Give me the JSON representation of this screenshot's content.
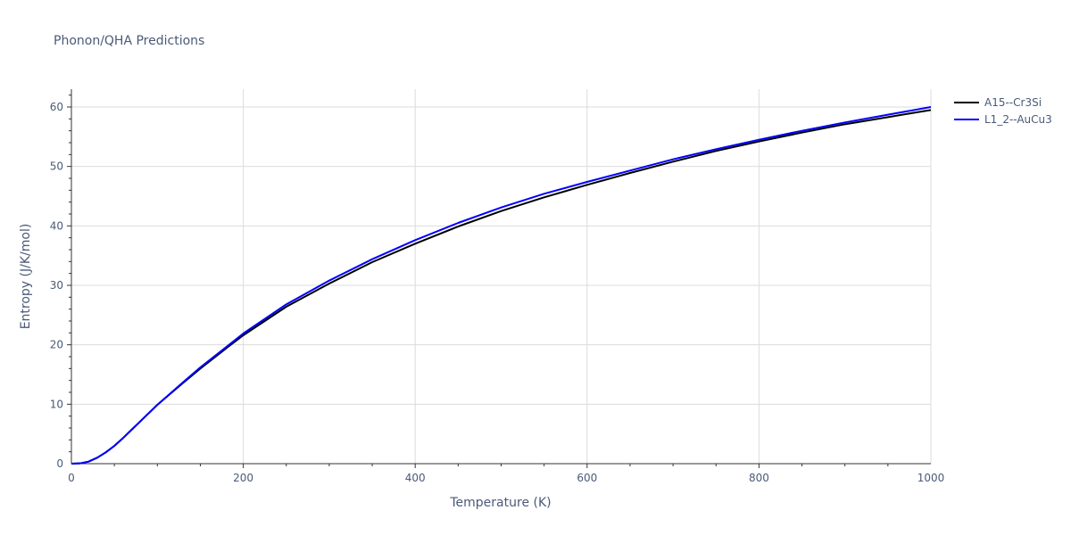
{
  "chart_data": {
    "type": "line",
    "title": "Phonon/QHA Predictions",
    "xlabel": "Temperature (K)",
    "ylabel": "Entropy (J/K/mol)",
    "xlim": [
      0,
      1000
    ],
    "ylim": [
      0,
      63
    ],
    "xticks": [
      0,
      200,
      400,
      600,
      800,
      1000
    ],
    "yticks": [
      0,
      10,
      20,
      30,
      40,
      50,
      60
    ],
    "grid": true,
    "legend_position": "top-right",
    "series": [
      {
        "name": "A15--Cr3Si",
        "color": "#000000",
        "x": [
          0,
          10,
          20,
          30,
          40,
          50,
          60,
          70,
          80,
          100,
          130,
          150,
          180,
          200,
          250,
          300,
          350,
          400,
          450,
          500,
          550,
          600,
          650,
          700,
          750,
          800,
          850,
          900,
          950,
          1000
        ],
        "y": [
          0,
          0.05,
          0.35,
          1.0,
          1.9,
          3.0,
          4.3,
          5.7,
          7.1,
          9.9,
          13.6,
          16.0,
          19.4,
          21.6,
          26.4,
          30.3,
          33.9,
          37.0,
          39.9,
          42.5,
          44.8,
          46.9,
          48.9,
          50.8,
          52.6,
          54.2,
          55.7,
          57.1,
          58.3,
          59.5
        ]
      },
      {
        "name": "L1_2--AuCu3",
        "color": "#0000ff",
        "x": [
          0,
          10,
          20,
          30,
          40,
          50,
          60,
          70,
          80,
          100,
          130,
          150,
          180,
          200,
          250,
          300,
          350,
          400,
          450,
          500,
          550,
          600,
          650,
          700,
          750,
          800,
          850,
          900,
          950,
          1000
        ],
        "y": [
          0,
          0.05,
          0.35,
          1.0,
          1.9,
          3.0,
          4.3,
          5.7,
          7.1,
          9.9,
          13.7,
          16.2,
          19.6,
          21.9,
          26.8,
          30.8,
          34.4,
          37.6,
          40.5,
          43.1,
          45.4,
          47.4,
          49.3,
          51.2,
          52.9,
          54.5,
          56.0,
          57.4,
          58.7,
          60.0
        ]
      }
    ]
  }
}
